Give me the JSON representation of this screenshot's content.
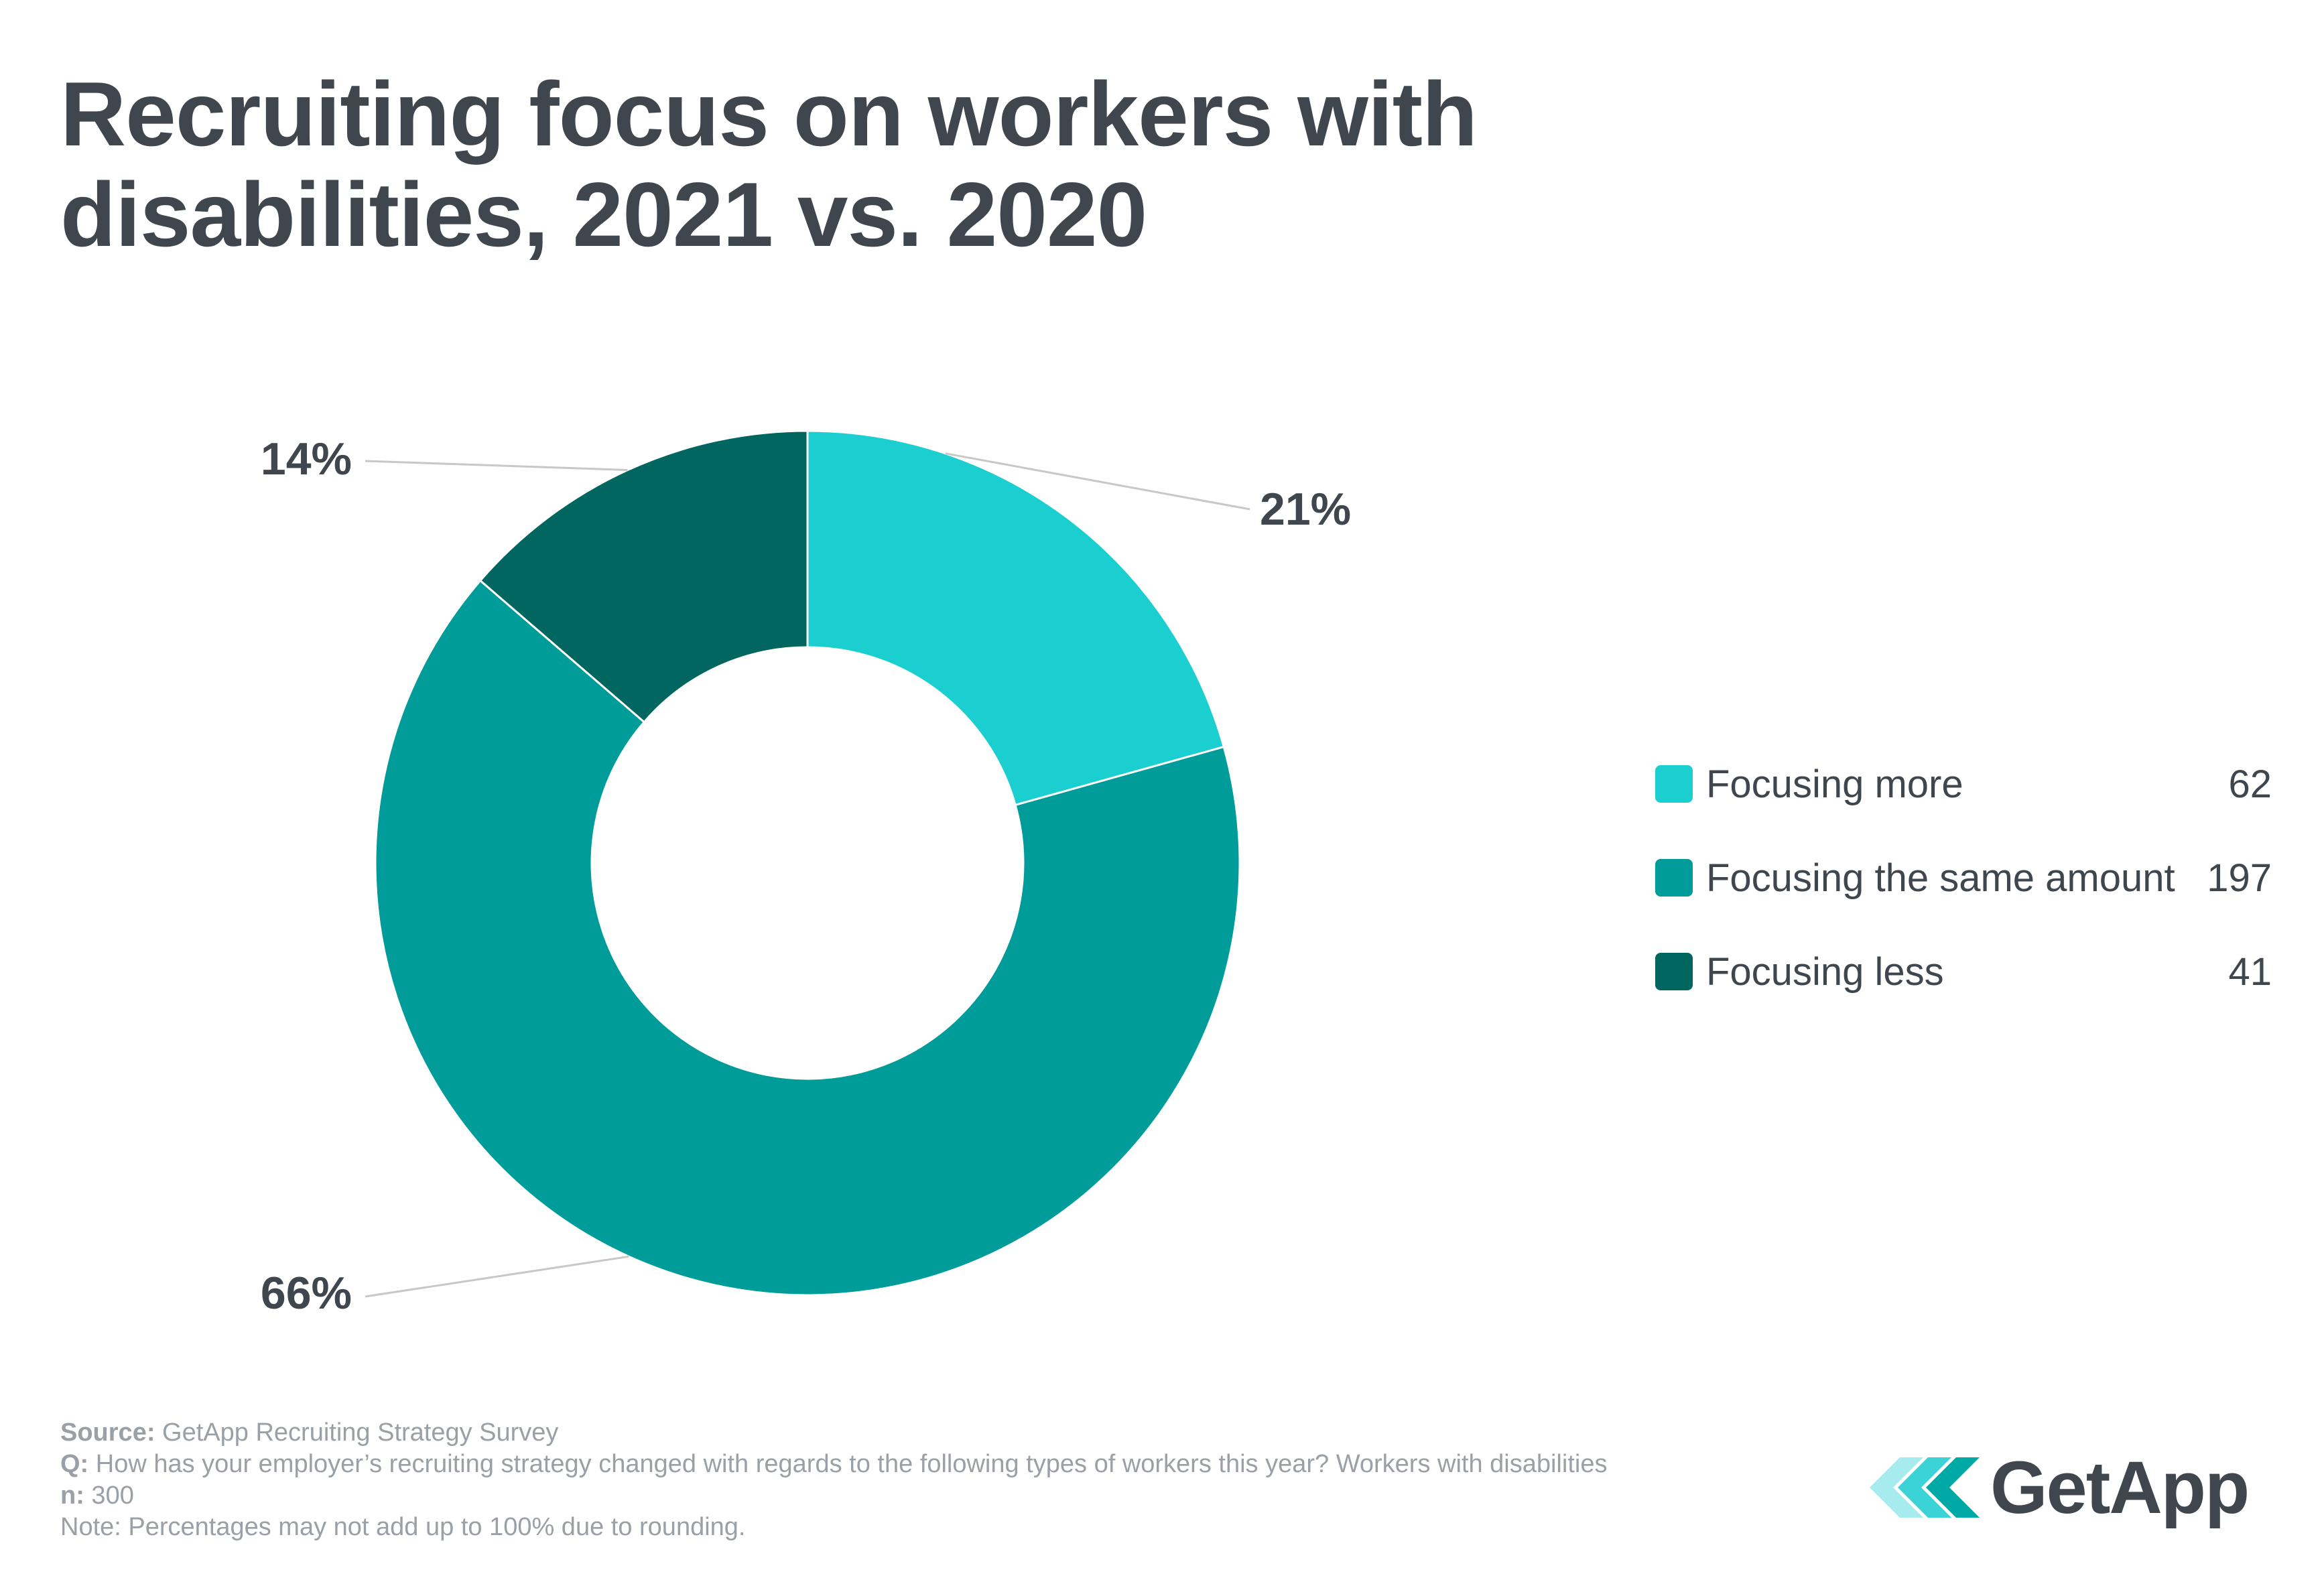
{
  "title_line1": "Recruiting focus on workers with",
  "title_line2": "disabilities, 2021 vs. 2020",
  "chart_data": {
    "type": "pie",
    "variant": "donut",
    "title": "Recruiting focus on workers with disabilities, 2021 vs. 2020",
    "categories": [
      "Focusing more",
      "Focusing the same amount",
      "Focusing less"
    ],
    "values": [
      62,
      197,
      41
    ],
    "percent_labels": [
      "21%",
      "66%",
      "14%"
    ],
    "colors": [
      "#1bcfd0",
      "#009c9a",
      "#00665f"
    ],
    "legend_position": "right"
  },
  "footer": {
    "source_label": "Source:",
    "source_text": " GetApp Recruiting Strategy Survey",
    "q_label": "Q:",
    "q_text": " How has your employer’s recruiting strategy changed with regards to the following types of workers this year? Workers with disabilities",
    "n_label": "n:",
    "n_text": " 300",
    "note": "Note: Percentages may not add up to 100% due to rounding."
  },
  "logo": {
    "text": "GetApp",
    "mark_icon": "getapp-chevrons-icon",
    "colors": [
      "#a6ecee",
      "#3bd3d5",
      "#00a8a6"
    ]
  }
}
